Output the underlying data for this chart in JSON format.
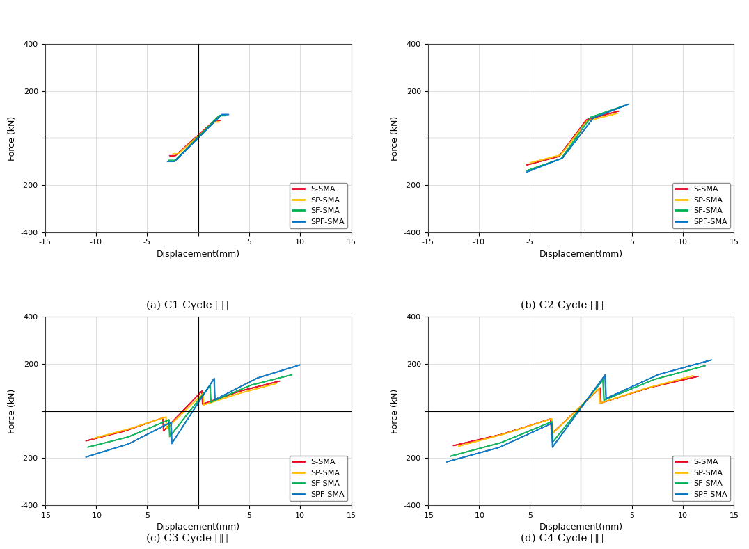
{
  "panels": [
    "(a) C1 Cycle 비교",
    "(b) C2 Cycle 비교",
    "(c) C3 Cycle 비교",
    "(d) C4 Cycle 비교"
  ],
  "xlabel": "Displacement(mm)",
  "ylabel": "Force (kN)",
  "xlim": [
    -15,
    15
  ],
  "ylim": [
    -400,
    400
  ],
  "xticks": [
    -15,
    -10,
    -5,
    0,
    5,
    10,
    15
  ],
  "yticks": [
    -400,
    -200,
    0,
    200,
    400
  ],
  "colors": {
    "S-SMA": "#e8001c",
    "SP-SMA": "#ffc000",
    "SF-SMA": "#00b050",
    "SPF-SMA": "#0070c0"
  },
  "legend_labels": [
    "S-SMA",
    "SP-SMA",
    "SF-SMA",
    "SPF-SMA"
  ],
  "background": "#ffffff",
  "grid_color": "#d0d0d0",
  "axis_color": "#222222"
}
